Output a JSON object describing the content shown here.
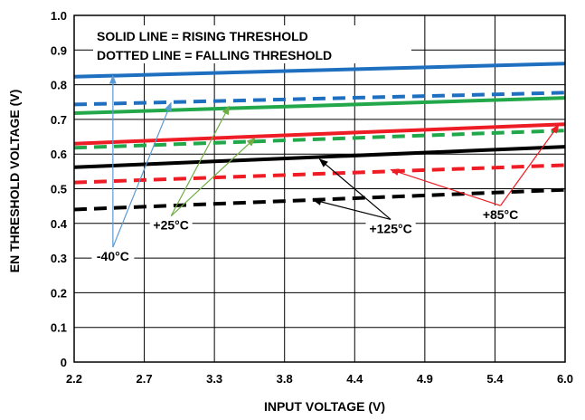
{
  "chart_data": {
    "type": "line",
    "xlabel": "INPUT VOLTAGE (V)",
    "ylabel": "EN THRESHOLD VOLTAGE (V)",
    "xlim": [
      2.2,
      6.0
    ],
    "ylim": [
      0,
      1.0
    ],
    "x_ticks": [
      "2.2",
      "2.7",
      "3.3",
      "3.8",
      "4.4",
      "4.9",
      "5.4",
      "6.0"
    ],
    "y_ticks": [
      "0",
      "0.1",
      "0.2",
      "0.3",
      "0.4",
      "0.5",
      "0.6",
      "0.7",
      "0.8",
      "0.9",
      "1.0"
    ],
    "grid": true,
    "notes": [
      "SOLID LINE = RISING THRESHOLD",
      "DOTTED LINE = FALLING THRESHOLD"
    ],
    "series": [
      {
        "temp": "-40°C",
        "style": "solid",
        "color": "#1f6fc0",
        "x": [
          2.2,
          6.0
        ],
        "values": [
          0.823,
          0.861
        ]
      },
      {
        "temp": "-40°C",
        "style": "dashed",
        "color": "#1f6fc0",
        "x": [
          2.2,
          6.0
        ],
        "values": [
          0.743,
          0.777
        ]
      },
      {
        "temp": "+25°C",
        "style": "solid",
        "color": "#22a84a",
        "x": [
          2.2,
          6.0
        ],
        "values": [
          0.718,
          0.762
        ]
      },
      {
        "temp": "+25°C",
        "style": "dashed",
        "color": "#22a84a",
        "x": [
          2.2,
          6.0
        ],
        "values": [
          0.618,
          0.668
        ]
      },
      {
        "temp": "+85°C",
        "style": "solid",
        "color": "#ee1c24",
        "x": [
          2.2,
          6.0
        ],
        "values": [
          0.63,
          0.686
        ]
      },
      {
        "temp": "+85°C",
        "style": "dashed",
        "color": "#ee1c24",
        "x": [
          2.2,
          6.0
        ],
        "values": [
          0.518,
          0.568
        ]
      },
      {
        "temp": "+125°C",
        "style": "solid",
        "color": "#000000",
        "x": [
          2.2,
          6.0
        ],
        "values": [
          0.562,
          0.621
        ]
      },
      {
        "temp": "+125°C",
        "style": "dashed",
        "color": "#000000",
        "x": [
          2.2,
          6.0
        ],
        "values": [
          0.44,
          0.497
        ]
      }
    ],
    "annotations": [
      {
        "text": "-40°C",
        "color": "#5b9bd5",
        "label": [
          2.5,
          0.3
        ],
        "targets": [
          [
            2.5,
            0.826
          ],
          [
            2.95,
            0.748
          ]
        ]
      },
      {
        "text": "+25°C",
        "color": "#70ad47",
        "label": [
          2.95,
          0.39
        ],
        "targets": [
          [
            3.4,
            0.738
          ],
          [
            3.6,
            0.646
          ]
        ]
      },
      {
        "text": "+125°C",
        "color": "#000000",
        "label": [
          4.65,
          0.38
        ],
        "targets": [
          [
            4.1,
            0.585
          ],
          [
            4.05,
            0.468
          ]
        ]
      },
      {
        "text": "+85°C",
        "color": "#ee1c24",
        "label": [
          5.5,
          0.42
        ],
        "targets": [
          [
            5.95,
            0.684
          ],
          [
            4.65,
            0.555
          ]
        ]
      }
    ]
  }
}
